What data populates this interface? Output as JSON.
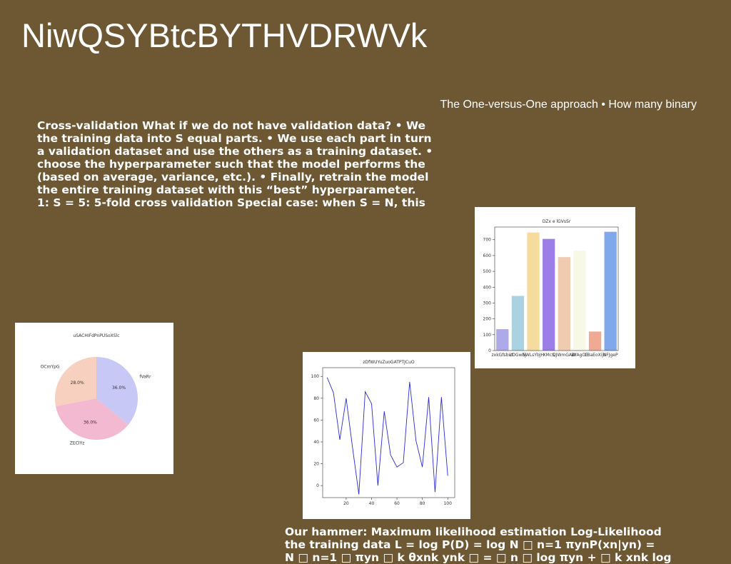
{
  "header": {
    "title": "NiwQSYBtcBYTHVDRWVk",
    "subtitle": "The One-versus-One approach • How many binary"
  },
  "body": {
    "lines": [
      "Cross-validation What if we do not have validation data? • We",
      "the training data into S equal parts. • We use each part in turn",
      "a validation dataset and use the others as a training dataset. •",
      "choose the hyperparameter such that the model performs the",
      "(based on average, variance, etc.). • Finally, retrain the model",
      "the entire training dataset with this “best” hyperparameter.",
      "1: S = 5: 5-fold cross validation Special case: when S = N, this"
    ]
  },
  "footer": {
    "lines": [
      "Our hammer: Maximum likelihood estimation Log-Likelihood",
      "the training data L = log P(D) = log N □ n=1 πynP(xn|yn) =",
      "N □ n=1 □ πyn □ k θxnk ynk □ = □ n □ log πyn + □ k xnk log"
    ]
  },
  "chart_data": [
    {
      "type": "bar",
      "title": "DZx e lGVsSr",
      "categories": [
        "zxkGfsbUt",
        "cDGwbj",
        "SWLsYbJH",
        "XMcS",
        "QJWmGAW",
        "BYAgCE",
        "CBaEoXijb",
        "NFJgeP"
      ],
      "values": [
        135,
        345,
        745,
        705,
        590,
        630,
        120,
        750
      ],
      "colors": [
        "#aeaaea",
        "#a9d2e2",
        "#f5dc9e",
        "#9c7ee9",
        "#f1cbaf",
        "#f8f8e6",
        "#f0aa94",
        "#80a8ea"
      ],
      "ylim": [
        0,
        780
      ],
      "yticks": [
        0,
        100,
        200,
        300,
        400,
        500,
        600,
        700
      ]
    },
    {
      "type": "pie",
      "title": "uSACHIFdPnPUSoXSlc",
      "categories": [
        "fVaRr",
        "ZECIYz",
        "OCmYpG"
      ],
      "values": [
        36,
        36,
        28
      ],
      "value_labels": [
        "36.0%",
        "36.0%",
        "28.0%"
      ],
      "colors": [
        "#c8c8f7",
        "#f3b9d1",
        "#f7d0c0"
      ]
    },
    {
      "type": "line",
      "title": "zDfWUYuZuoGATPTJCuO",
      "x": [
        5,
        10,
        15,
        20,
        25,
        30,
        35,
        40,
        45,
        50,
        55,
        60,
        65,
        70,
        75,
        80,
        85,
        90,
        95,
        100
      ],
      "values": [
        99,
        85,
        42,
        80,
        35,
        -8,
        86,
        75,
        0,
        68,
        28,
        17,
        21,
        95,
        41,
        17,
        81,
        -6,
        81,
        9
      ],
      "color": "#2b2bd6",
      "xlim": [
        1.5,
        105.5
      ],
      "xticks": [
        20,
        40,
        60,
        80,
        100
      ],
      "ylim": [
        -11,
        108
      ],
      "yticks": [
        0,
        20,
        40,
        60,
        80,
        100
      ]
    }
  ]
}
